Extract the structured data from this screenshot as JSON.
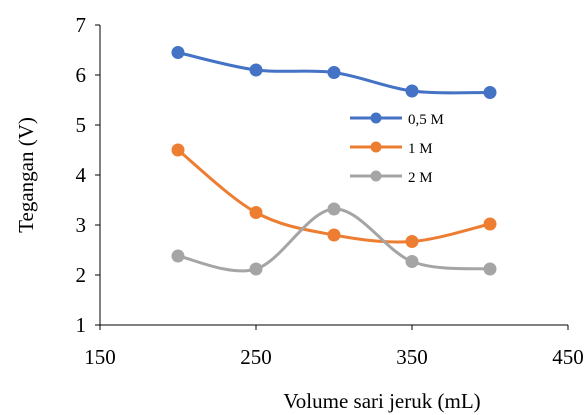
{
  "chart_data": {
    "type": "line",
    "title": "",
    "xlabel": "Volume sari jeruk (mL)",
    "ylabel": "Tegangan (V)",
    "xlim": [
      150,
      450
    ],
    "ylim": [
      1,
      7
    ],
    "xticks": [
      150,
      250,
      350,
      450
    ],
    "xtick_labels": [
      "150",
      "250",
      "350",
      "450"
    ],
    "yticks": [
      1,
      2,
      3,
      4,
      5,
      6,
      7
    ],
    "ytick_labels": [
      "1",
      "2",
      "3",
      "4",
      "5",
      "6",
      "7"
    ],
    "grid": false,
    "smooth": true,
    "legend_position": "right-center",
    "series": [
      {
        "name": "0,5 M",
        "color": "#4472C4",
        "x": [
          200,
          250,
          300,
          350,
          400
        ],
        "y": [
          6.45,
          6.1,
          6.05,
          5.68,
          5.65
        ]
      },
      {
        "name": "1 M",
        "color": "#ED7D31",
        "x": [
          200,
          250,
          300,
          350,
          400
        ],
        "y": [
          4.5,
          3.25,
          2.8,
          2.67,
          3.02
        ]
      },
      {
        "name": "2 M",
        "color": "#A5A5A5",
        "x": [
          200,
          250,
          300,
          350,
          400
        ],
        "y": [
          2.38,
          2.12,
          3.32,
          2.27,
          2.12
        ]
      }
    ]
  }
}
